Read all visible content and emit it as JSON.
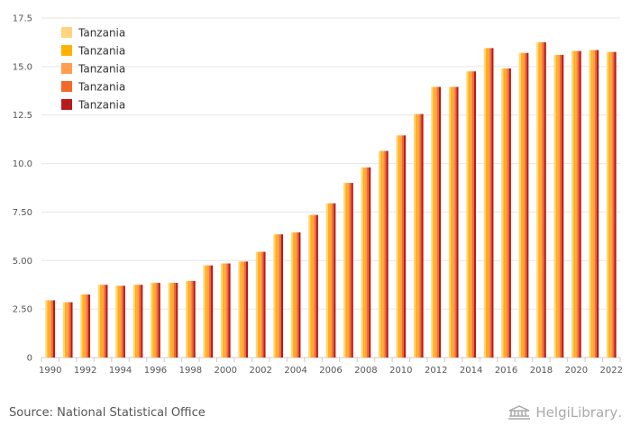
{
  "chart_data": {
    "type": "bar",
    "title": "",
    "xlabel": "",
    "ylabel": "",
    "ylim": [
      0,
      17.5
    ],
    "yticks": [
      "0",
      "2.50",
      "5.00",
      "7.50",
      "10.0",
      "12.5",
      "15.0",
      "17.5"
    ],
    "ytick_values": [
      0,
      2.5,
      5,
      7.5,
      10,
      12.5,
      15,
      17.5
    ],
    "grid": true,
    "legend_position": "top-left",
    "categories": [
      "1990",
      "1991",
      "1992",
      "1993",
      "1994",
      "1995",
      "1996",
      "1997",
      "1998",
      "1999",
      "2000",
      "2001",
      "2002",
      "2003",
      "2004",
      "2005",
      "2006",
      "2007",
      "2008",
      "2009",
      "2010",
      "2011",
      "2012",
      "2013",
      "2014",
      "2015",
      "2016",
      "2017",
      "2018",
      "2019",
      "2020",
      "2021",
      "2022"
    ],
    "x_tick_labels": [
      "1990",
      "1992",
      "1994",
      "1996",
      "1998",
      "2000",
      "2002",
      "2004",
      "2006",
      "2008",
      "2010",
      "2012",
      "2014",
      "2016",
      "2018",
      "2020",
      "2022"
    ],
    "series": [
      {
        "name": "Tanzania",
        "color": "#FFD47F",
        "values": [
          2.95,
          2.85,
          3.25,
          3.75,
          3.7,
          3.75,
          3.85,
          3.85,
          3.95,
          4.75,
          4.85,
          4.95,
          5.45,
          6.35,
          6.45,
          7.35,
          7.95,
          9.0,
          9.8,
          10.65,
          11.45,
          12.55,
          13.95,
          13.95,
          14.75,
          15.95,
          14.9,
          15.7,
          16.25,
          15.6,
          15.8,
          15.85,
          15.75
        ]
      },
      {
        "name": "Tanzania",
        "color": "#FFB300",
        "values": [
          2.95,
          2.85,
          3.25,
          3.75,
          3.7,
          3.75,
          3.85,
          3.85,
          3.95,
          4.75,
          4.85,
          4.95,
          5.45,
          6.35,
          6.45,
          7.35,
          7.95,
          9.0,
          9.8,
          10.65,
          11.45,
          12.55,
          13.95,
          13.95,
          14.75,
          15.95,
          14.9,
          15.7,
          16.25,
          15.6,
          15.8,
          15.85,
          15.75
        ]
      },
      {
        "name": "Tanzania",
        "color": "#FF9E4F",
        "values": [
          2.95,
          2.85,
          3.25,
          3.75,
          3.7,
          3.75,
          3.85,
          3.85,
          3.95,
          4.75,
          4.85,
          4.95,
          5.45,
          6.35,
          6.45,
          7.35,
          7.95,
          9.0,
          9.8,
          10.65,
          11.45,
          12.55,
          13.95,
          13.95,
          14.75,
          15.95,
          14.9,
          15.7,
          16.25,
          15.6,
          15.8,
          15.85,
          15.75
        ]
      },
      {
        "name": "Tanzania",
        "color": "#F4692A",
        "values": [
          2.95,
          2.85,
          3.25,
          3.75,
          3.7,
          3.75,
          3.85,
          3.85,
          3.95,
          4.75,
          4.85,
          4.95,
          5.45,
          6.35,
          6.45,
          7.35,
          7.95,
          9.0,
          9.8,
          10.65,
          11.45,
          12.55,
          13.95,
          13.95,
          14.75,
          15.95,
          14.9,
          15.7,
          16.25,
          15.6,
          15.8,
          15.85,
          15.75
        ]
      },
      {
        "name": "Tanzania",
        "color": "#B71C1C",
        "values": [
          2.95,
          2.85,
          3.25,
          3.75,
          3.7,
          3.75,
          3.85,
          3.85,
          3.95,
          4.75,
          4.85,
          4.95,
          5.45,
          6.35,
          6.45,
          7.35,
          7.95,
          9.0,
          9.8,
          10.65,
          11.45,
          12.55,
          13.95,
          13.95,
          14.75,
          15.95,
          14.9,
          15.7,
          16.25,
          15.6,
          15.8,
          15.85,
          15.75
        ]
      }
    ]
  },
  "source_text": "Source: National Statistical Office",
  "brand": {
    "name": "HelgiLibrary",
    "suffix": "."
  }
}
